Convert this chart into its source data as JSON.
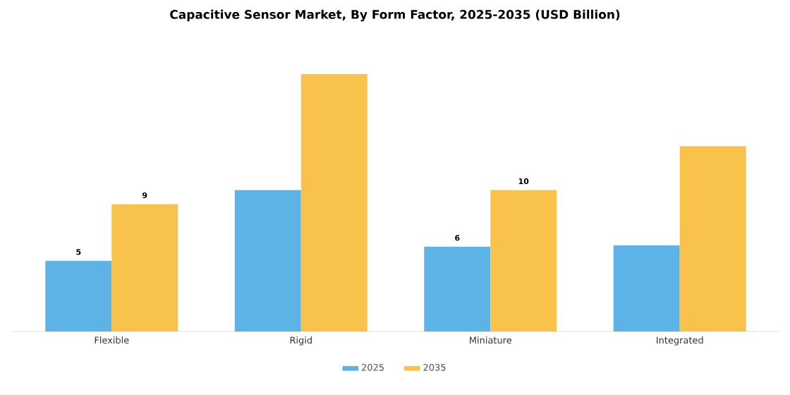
{
  "chart_data": {
    "type": "bar",
    "title": "Capacitive Sensor Market, By Form Factor, 2025-2035 (USD Billion)",
    "categories": [
      "Flexible",
      "Rigid",
      "Miniature",
      "Integrated"
    ],
    "series": [
      {
        "name": "2025",
        "color": "#5db3e6",
        "values": [
          5,
          10,
          6,
          6.1
        ],
        "value_labels": [
          "5",
          null,
          "6",
          null
        ]
      },
      {
        "name": "2035",
        "color": "#f8c24b",
        "values": [
          9,
          18.2,
          10,
          13.1
        ],
        "value_labels": [
          "9",
          null,
          "10",
          null
        ]
      }
    ],
    "legend": "bottom"
  }
}
